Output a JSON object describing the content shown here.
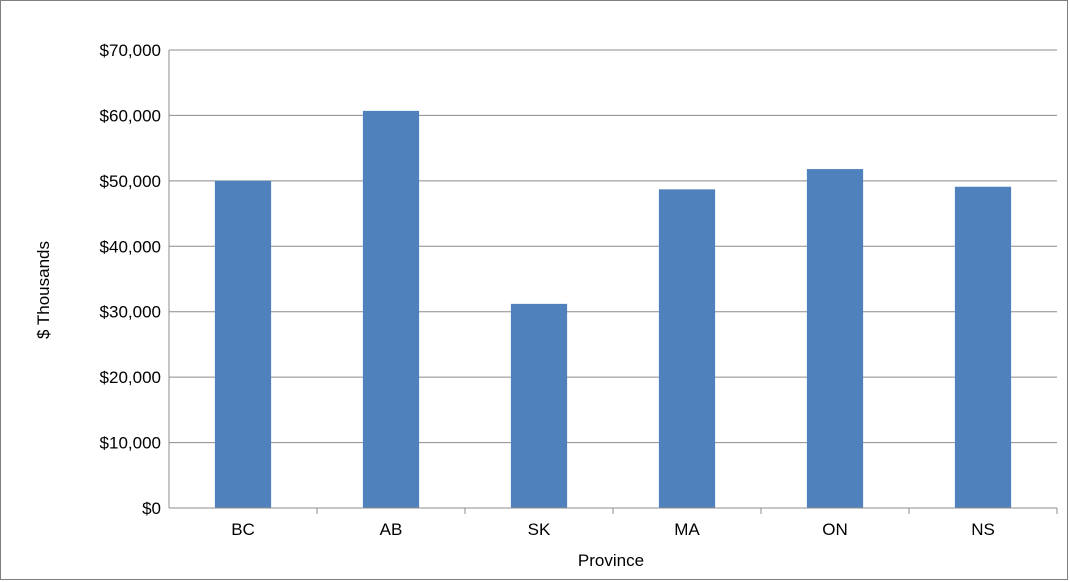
{
  "chart_data": {
    "type": "bar",
    "title": "",
    "xlabel": "Province",
    "ylabel": "$ Thousands",
    "categories": [
      "BC",
      "AB",
      "SK",
      "MA",
      "ON",
      "NS"
    ],
    "values": [
      50000,
      60700,
      31200,
      48700,
      51800,
      49100
    ],
    "ylim": [
      0,
      70000
    ],
    "yticks": [
      0,
      10000,
      20000,
      30000,
      40000,
      50000,
      60000,
      70000
    ],
    "ytick_labels": [
      "$0",
      "$10,000",
      "$20,000",
      "$30,000",
      "$40,000",
      "$50,000",
      "$60,000",
      "$70,000"
    ],
    "bar_color": "#4f81bd",
    "grid": true,
    "legend": "none"
  }
}
